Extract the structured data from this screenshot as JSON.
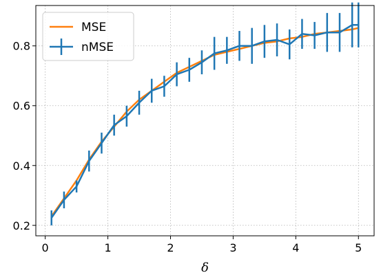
{
  "chart_data": {
    "type": "line",
    "title": "",
    "xlabel": "δ",
    "ylabel": "",
    "xlim": [
      -0.15,
      5.25
    ],
    "ylim": [
      0.165,
      0.935
    ],
    "xticks": [
      0,
      1,
      2,
      3,
      4,
      5
    ],
    "yticks": [
      0.2,
      0.4,
      0.6,
      0.8
    ],
    "xtick_labels": [
      "0",
      "1",
      "2",
      "3",
      "4",
      "5"
    ],
    "ytick_labels": [
      "0.2",
      "0.4",
      "0.6",
      "0.8"
    ],
    "grid": true,
    "legend": "top-left",
    "x": [
      0.1,
      0.3,
      0.5,
      0.7,
      0.9,
      1.1,
      1.3,
      1.5,
      1.7,
      1.9,
      2.1,
      2.3,
      2.5,
      2.7,
      2.9,
      3.1,
      3.3,
      3.5,
      3.7,
      3.9,
      4.1,
      4.3,
      4.5,
      4.7,
      4.9,
      5.0
    ],
    "series": [
      {
        "name": "MSE",
        "color": "#ff7f0e",
        "values": [
          0.23,
          0.29,
          0.35,
          0.42,
          0.48,
          0.53,
          0.58,
          0.62,
          0.65,
          0.68,
          0.71,
          0.73,
          0.75,
          0.77,
          0.78,
          0.79,
          0.8,
          0.81,
          0.815,
          0.825,
          0.83,
          0.84,
          0.845,
          0.85,
          0.855,
          0.86
        ]
      },
      {
        "name": "nMSE",
        "color": "#1f77b4",
        "values": [
          0.225,
          0.285,
          0.33,
          0.415,
          0.475,
          0.535,
          0.565,
          0.61,
          0.65,
          0.665,
          0.705,
          0.72,
          0.745,
          0.775,
          0.785,
          0.8,
          0.8,
          0.815,
          0.82,
          0.805,
          0.84,
          0.835,
          0.845,
          0.845,
          0.87,
          0.87
        ],
        "errors": [
          0.025,
          0.028,
          0.02,
          0.035,
          0.035,
          0.035,
          0.035,
          0.04,
          0.04,
          0.035,
          0.04,
          0.04,
          0.04,
          0.055,
          0.045,
          0.05,
          0.06,
          0.055,
          0.055,
          0.05,
          0.05,
          0.045,
          0.065,
          0.065,
          0.075,
          0.075
        ]
      }
    ]
  }
}
